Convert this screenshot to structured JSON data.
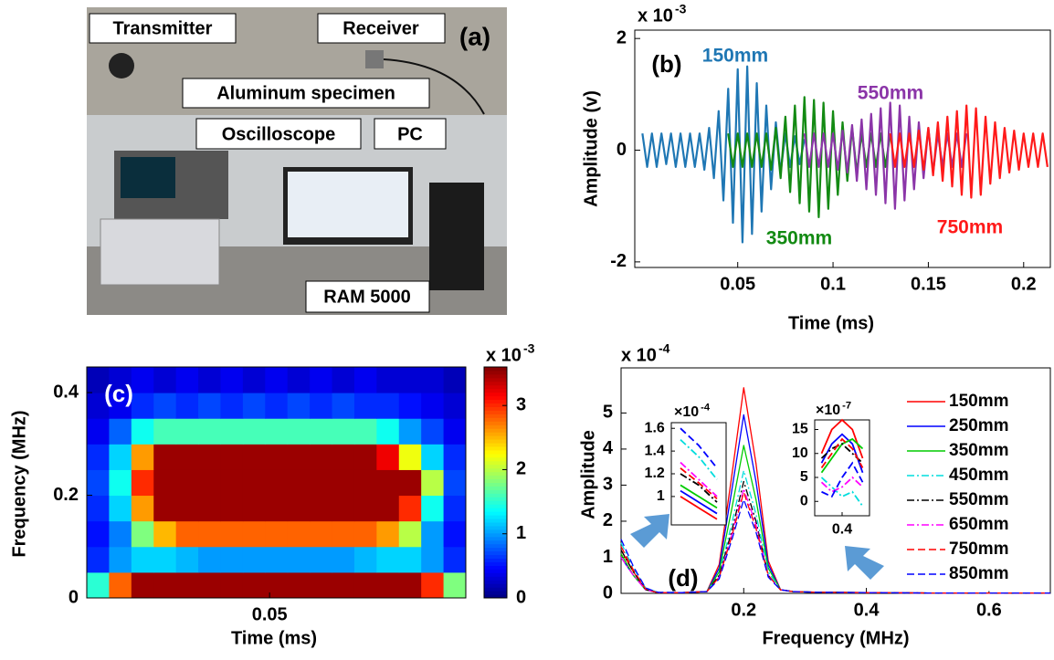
{
  "photo": {
    "panel_label": "(a)",
    "labels": [
      "Transmitter",
      "Receiver",
      "Aluminum specimen",
      "Oscilloscope",
      "PC",
      "RAM 5000"
    ]
  },
  "chart_data": [
    {
      "type": "line",
      "panel_label": "(b)",
      "multiplier": {
        "base": "x 10",
        "exponent": "-3"
      },
      "x_label": "Time (ms)",
      "y_label": "Amplitude (v)",
      "xlim": [
        -0.004,
        0.214
      ],
      "ylim": [
        -2.1,
        2.15
      ],
      "xticks": [
        0.05,
        0.1,
        0.15,
        0.2
      ],
      "yticks": [
        -2,
        0,
        2
      ],
      "series": [
        {
          "name": "150mm",
          "color": "#1f77b4",
          "x": [
            0.0,
            0.0025,
            0.005,
            0.0075,
            0.01,
            0.0125,
            0.015,
            0.0175,
            0.02,
            0.0225,
            0.025,
            0.0275,
            0.03,
            0.0325,
            0.035,
            0.0375,
            0.04,
            0.0425,
            0.045,
            0.0475,
            0.05,
            0.0525,
            0.055,
            0.0575,
            0.06,
            0.0625,
            0.065,
            0.0675,
            0.07,
            0.0725,
            0.075,
            0.0775,
            0.08,
            0.0825,
            0.085
          ],
          "values": [
            0.3,
            -0.3,
            0.3,
            -0.3,
            0.3,
            -0.25,
            0.3,
            -0.3,
            0.3,
            -0.3,
            0.3,
            -0.3,
            0.3,
            -0.35,
            0.4,
            -0.5,
            0.7,
            -0.9,
            1.1,
            -1.3,
            1.45,
            -1.65,
            1.5,
            -1.5,
            1.2,
            -1.1,
            0.8,
            -0.7,
            0.5,
            -0.4,
            0.3,
            -0.3,
            0.25,
            -0.25,
            0.2
          ]
        },
        {
          "name": "350mm",
          "color": "#138a13",
          "x": [
            0.045,
            0.0475,
            0.05,
            0.0525,
            0.055,
            0.0575,
            0.06,
            0.0625,
            0.065,
            0.0675,
            0.07,
            0.0725,
            0.075,
            0.0775,
            0.08,
            0.0825,
            0.085,
            0.0875,
            0.09,
            0.0925,
            0.095,
            0.0975,
            0.1,
            0.1025,
            0.105,
            0.1075,
            0.11,
            0.1125,
            0.115,
            0.1175,
            0.12,
            0.1225,
            0.125,
            0.1275,
            0.13
          ],
          "values": [
            0.3,
            -0.3,
            0.3,
            -0.3,
            0.3,
            -0.3,
            0.3,
            -0.3,
            0.3,
            -0.35,
            0.4,
            -0.5,
            0.6,
            -0.75,
            0.8,
            -0.95,
            0.95,
            -1.1,
            0.9,
            -1.2,
            0.85,
            -1.05,
            0.7,
            -0.8,
            0.5,
            -0.55,
            0.4,
            -0.4,
            0.3,
            -0.3,
            0.3,
            -0.3,
            0.3,
            -0.3,
            0.3
          ]
        },
        {
          "name": "550mm",
          "color": "#8b35a8",
          "x": [
            0.085,
            0.0875,
            0.09,
            0.0925,
            0.095,
            0.0975,
            0.1,
            0.1025,
            0.105,
            0.1075,
            0.11,
            0.1125,
            0.115,
            0.1175,
            0.12,
            0.1225,
            0.125,
            0.1275,
            0.13,
            0.1325,
            0.135,
            0.1375,
            0.14,
            0.1425,
            0.145,
            0.1475,
            0.15,
            0.1525,
            0.155,
            0.1575,
            0.16,
            0.1625,
            0.165,
            0.1675,
            0.17
          ],
          "values": [
            0.3,
            -0.3,
            0.3,
            -0.3,
            0.3,
            -0.3,
            0.3,
            -0.35,
            0.35,
            -0.4,
            0.45,
            -0.55,
            0.55,
            -0.7,
            0.65,
            -0.8,
            0.75,
            -0.95,
            0.85,
            -1.05,
            0.8,
            -0.9,
            0.6,
            -0.7,
            0.5,
            -0.5,
            0.4,
            -0.4,
            0.3,
            -0.3,
            0.3,
            -0.3,
            0.3,
            -0.3,
            0.3
          ]
        },
        {
          "name": "750mm",
          "color": "#ff1a1a",
          "x": [
            0.13,
            0.1325,
            0.135,
            0.1375,
            0.14,
            0.1425,
            0.145,
            0.1475,
            0.15,
            0.1525,
            0.155,
            0.1575,
            0.16,
            0.1625,
            0.165,
            0.1675,
            0.17,
            0.1725,
            0.175,
            0.1775,
            0.18,
            0.1825,
            0.185,
            0.1875,
            0.19,
            0.1925,
            0.195,
            0.1975,
            0.2,
            0.2025,
            0.205,
            0.2075,
            0.21,
            0.2125
          ],
          "values": [
            0.3,
            -0.3,
            0.3,
            -0.3,
            0.3,
            -0.3,
            0.35,
            -0.35,
            0.4,
            -0.45,
            0.5,
            -0.55,
            0.6,
            -0.65,
            0.7,
            -0.8,
            0.8,
            -0.85,
            0.75,
            -0.8,
            0.6,
            -0.6,
            0.5,
            -0.5,
            0.4,
            -0.4,
            0.35,
            -0.35,
            0.3,
            -0.3,
            0.3,
            -0.3,
            0.3,
            -0.3
          ]
        }
      ]
    },
    {
      "type": "heatmap",
      "panel_label": "(c)",
      "colormap": "jet",
      "multiplier": {
        "base": "x 10",
        "exponent": "-3"
      },
      "x_label": "Time (ms)",
      "y_label": "Frequency (MHz)",
      "xlim": [
        0.009,
        0.094
      ],
      "ylim": [
        0,
        0.45
      ],
      "xticks": [
        0.05
      ],
      "yticks": [
        0,
        0.2,
        0.4
      ],
      "clim": [
        0,
        3.6
      ],
      "cticks": [
        0,
        1,
        2,
        3
      ],
      "z": [
        [
          1.5,
          2.8,
          3.5,
          3.5,
          3.5,
          3.5,
          3.5,
          3.5,
          3.5,
          3.5,
          3.5,
          3.5,
          3.5,
          3.5,
          3.5,
          3.0,
          1.8
        ],
        [
          0.6,
          1.0,
          1.2,
          1.2,
          1.1,
          1.0,
          1.0,
          1.0,
          1.0,
          1.0,
          1.0,
          1.0,
          1.1,
          1.2,
          1.2,
          1.0,
          0.6
        ],
        [
          0.5,
          0.9,
          1.8,
          2.5,
          2.8,
          2.8,
          2.8,
          2.8,
          2.8,
          2.8,
          2.8,
          2.8,
          2.8,
          2.6,
          2.0,
          1.0,
          0.5
        ],
        [
          0.6,
          1.2,
          2.6,
          3.5,
          3.5,
          3.5,
          3.5,
          3.5,
          3.5,
          3.5,
          3.5,
          3.5,
          3.5,
          3.5,
          3.0,
          1.4,
          0.6
        ],
        [
          0.7,
          1.4,
          3.0,
          3.5,
          3.5,
          3.5,
          3.5,
          3.5,
          3.5,
          3.5,
          3.5,
          3.5,
          3.5,
          3.5,
          3.5,
          2.0,
          0.7
        ],
        [
          0.6,
          1.2,
          2.6,
          3.5,
          3.5,
          3.5,
          3.5,
          3.5,
          3.5,
          3.5,
          3.5,
          3.5,
          3.5,
          3.2,
          2.2,
          1.2,
          0.6
        ],
        [
          0.4,
          0.8,
          1.4,
          1.6,
          1.6,
          1.6,
          1.6,
          1.6,
          1.6,
          1.6,
          1.6,
          1.6,
          1.6,
          1.4,
          1.0,
          0.7,
          0.4
        ],
        [
          0.3,
          0.4,
          0.6,
          0.7,
          0.6,
          0.7,
          0.6,
          0.7,
          0.6,
          0.7,
          0.6,
          0.7,
          0.6,
          0.6,
          0.5,
          0.4,
          0.3
        ],
        [
          0.2,
          0.3,
          0.4,
          0.3,
          0.4,
          0.3,
          0.4,
          0.3,
          0.4,
          0.3,
          0.4,
          0.3,
          0.4,
          0.3,
          0.3,
          0.3,
          0.2
        ]
      ]
    },
    {
      "type": "line",
      "panel_label": "(d)",
      "multiplier": {
        "base": "x 10",
        "exponent": "-4"
      },
      "x_label": "Frequency (MHz)",
      "y_label": "Amplitude",
      "legend": "upper right",
      "xlim": [
        0,
        0.7
      ],
      "ylim": [
        0,
        6.25
      ],
      "xticks": [
        0.2,
        0.4,
        0.6
      ],
      "yticks": [
        0,
        1,
        2,
        3,
        4,
        5
      ],
      "x": [
        0,
        0.02,
        0.04,
        0.06,
        0.1,
        0.14,
        0.16,
        0.18,
        0.2,
        0.22,
        0.24,
        0.26,
        0.28,
        0.32,
        0.4,
        0.5,
        0.6,
        0.7
      ],
      "series": [
        {
          "name": "150mm",
          "color": "#ff0000",
          "dash": "solid",
          "values": [
            1.2,
            0.6,
            0.1,
            0.02,
            0.02,
            0.05,
            0.8,
            3.2,
            5.7,
            3.6,
            0.9,
            0.1,
            0.05,
            0.03,
            0.02,
            0.01,
            0.01,
            0.01
          ]
        },
        {
          "name": "250mm",
          "color": "#0000ff",
          "dash": "solid",
          "values": [
            1.0,
            0.5,
            0.1,
            0.02,
            0.02,
            0.05,
            0.7,
            2.8,
            4.95,
            3.1,
            0.8,
            0.1,
            0.05,
            0.03,
            0.02,
            0.01,
            0.01,
            0.01
          ]
        },
        {
          "name": "350mm",
          "color": "#00cc00",
          "dash": "solid",
          "values": [
            1.1,
            0.5,
            0.1,
            0.02,
            0.02,
            0.05,
            0.6,
            2.3,
            4.1,
            2.6,
            0.7,
            0.1,
            0.05,
            0.03,
            0.02,
            0.01,
            0.01,
            0.01
          ]
        },
        {
          "name": "450mm",
          "color": "#00dddd",
          "dash": "dashdot",
          "values": [
            1.4,
            0.7,
            0.15,
            0.03,
            0.02,
            0.05,
            0.5,
            1.9,
            3.4,
            2.2,
            0.6,
            0.1,
            0.05,
            0.03,
            0.02,
            0.01,
            0.01,
            0.01
          ]
        },
        {
          "name": "550mm",
          "color": "#000000",
          "dash": "dashdot",
          "values": [
            1.2,
            0.6,
            0.1,
            0.02,
            0.02,
            0.05,
            0.5,
            1.7,
            3.1,
            2.0,
            0.5,
            0.1,
            0.05,
            0.03,
            0.02,
            0.01,
            0.01,
            0.01
          ]
        },
        {
          "name": "650mm",
          "color": "#ff00ff",
          "dash": "dashdot",
          "values": [
            1.0,
            0.5,
            0.1,
            0.02,
            0.02,
            0.05,
            0.45,
            1.6,
            2.9,
            1.9,
            0.5,
            0.1,
            0.05,
            0.03,
            0.02,
            0.01,
            0.01,
            0.01
          ]
        },
        {
          "name": "750mm",
          "color": "#ff0000",
          "dash": "dashed",
          "values": [
            1.3,
            0.65,
            0.12,
            0.02,
            0.02,
            0.05,
            0.45,
            1.55,
            2.8,
            1.8,
            0.5,
            0.1,
            0.05,
            0.03,
            0.02,
            0.01,
            0.01,
            0.01
          ]
        },
        {
          "name": "850mm",
          "color": "#0000ff",
          "dash": "dashed",
          "values": [
            1.5,
            0.75,
            0.15,
            0.03,
            0.02,
            0.05,
            0.4,
            1.45,
            2.6,
            1.7,
            0.45,
            0.1,
            0.05,
            0.03,
            0.02,
            0.01,
            0.01,
            0.01
          ]
        }
      ],
      "insets": [
        {
          "multiplier": {
            "base": "×10",
            "exponent": "-4"
          },
          "x": [
            0.01,
            0.02,
            0.03
          ],
          "xlim": [
            0.005,
            0.035
          ],
          "ylim": [
            0.75,
            1.65
          ],
          "yticks": [
            1,
            1.2,
            1.4,
            1.6
          ],
          "series_values": [
            [
              1.0,
              0.9,
              0.8
            ],
            [
              1.05,
              0.95,
              0.85
            ],
            [
              1.1,
              1.0,
              0.9
            ],
            [
              1.5,
              1.35,
              1.15
            ],
            [
              1.2,
              1.1,
              0.95
            ],
            [
              1.3,
              1.15,
              1.0
            ],
            [
              1.25,
              1.12,
              0.98
            ],
            [
              1.6,
              1.45,
              1.25
            ]
          ]
        },
        {
          "multiplier": {
            "base": "×10",
            "exponent": "-7"
          },
          "x": [
            0.37,
            0.385,
            0.4,
            0.415,
            0.43
          ],
          "xlim": [
            0.36,
            0.44
          ],
          "xticks": [
            0.4
          ],
          "ylim": [
            -3,
            17
          ],
          "yticks": [
            0,
            5,
            10,
            15
          ],
          "series_values": [
            [
              10,
              15,
              17,
              15,
              9
            ],
            [
              8,
              12,
              14,
              12,
              6
            ],
            [
              6,
              9,
              12,
              13,
              11
            ],
            [
              5,
              3,
              1,
              2,
              -1
            ],
            [
              9,
              11,
              12,
              10,
              8
            ],
            [
              4,
              2,
              3,
              5,
              3
            ],
            [
              7,
              10,
              13,
              11,
              7
            ],
            [
              2,
              1,
              5,
              8,
              4
            ]
          ]
        }
      ]
    }
  ]
}
